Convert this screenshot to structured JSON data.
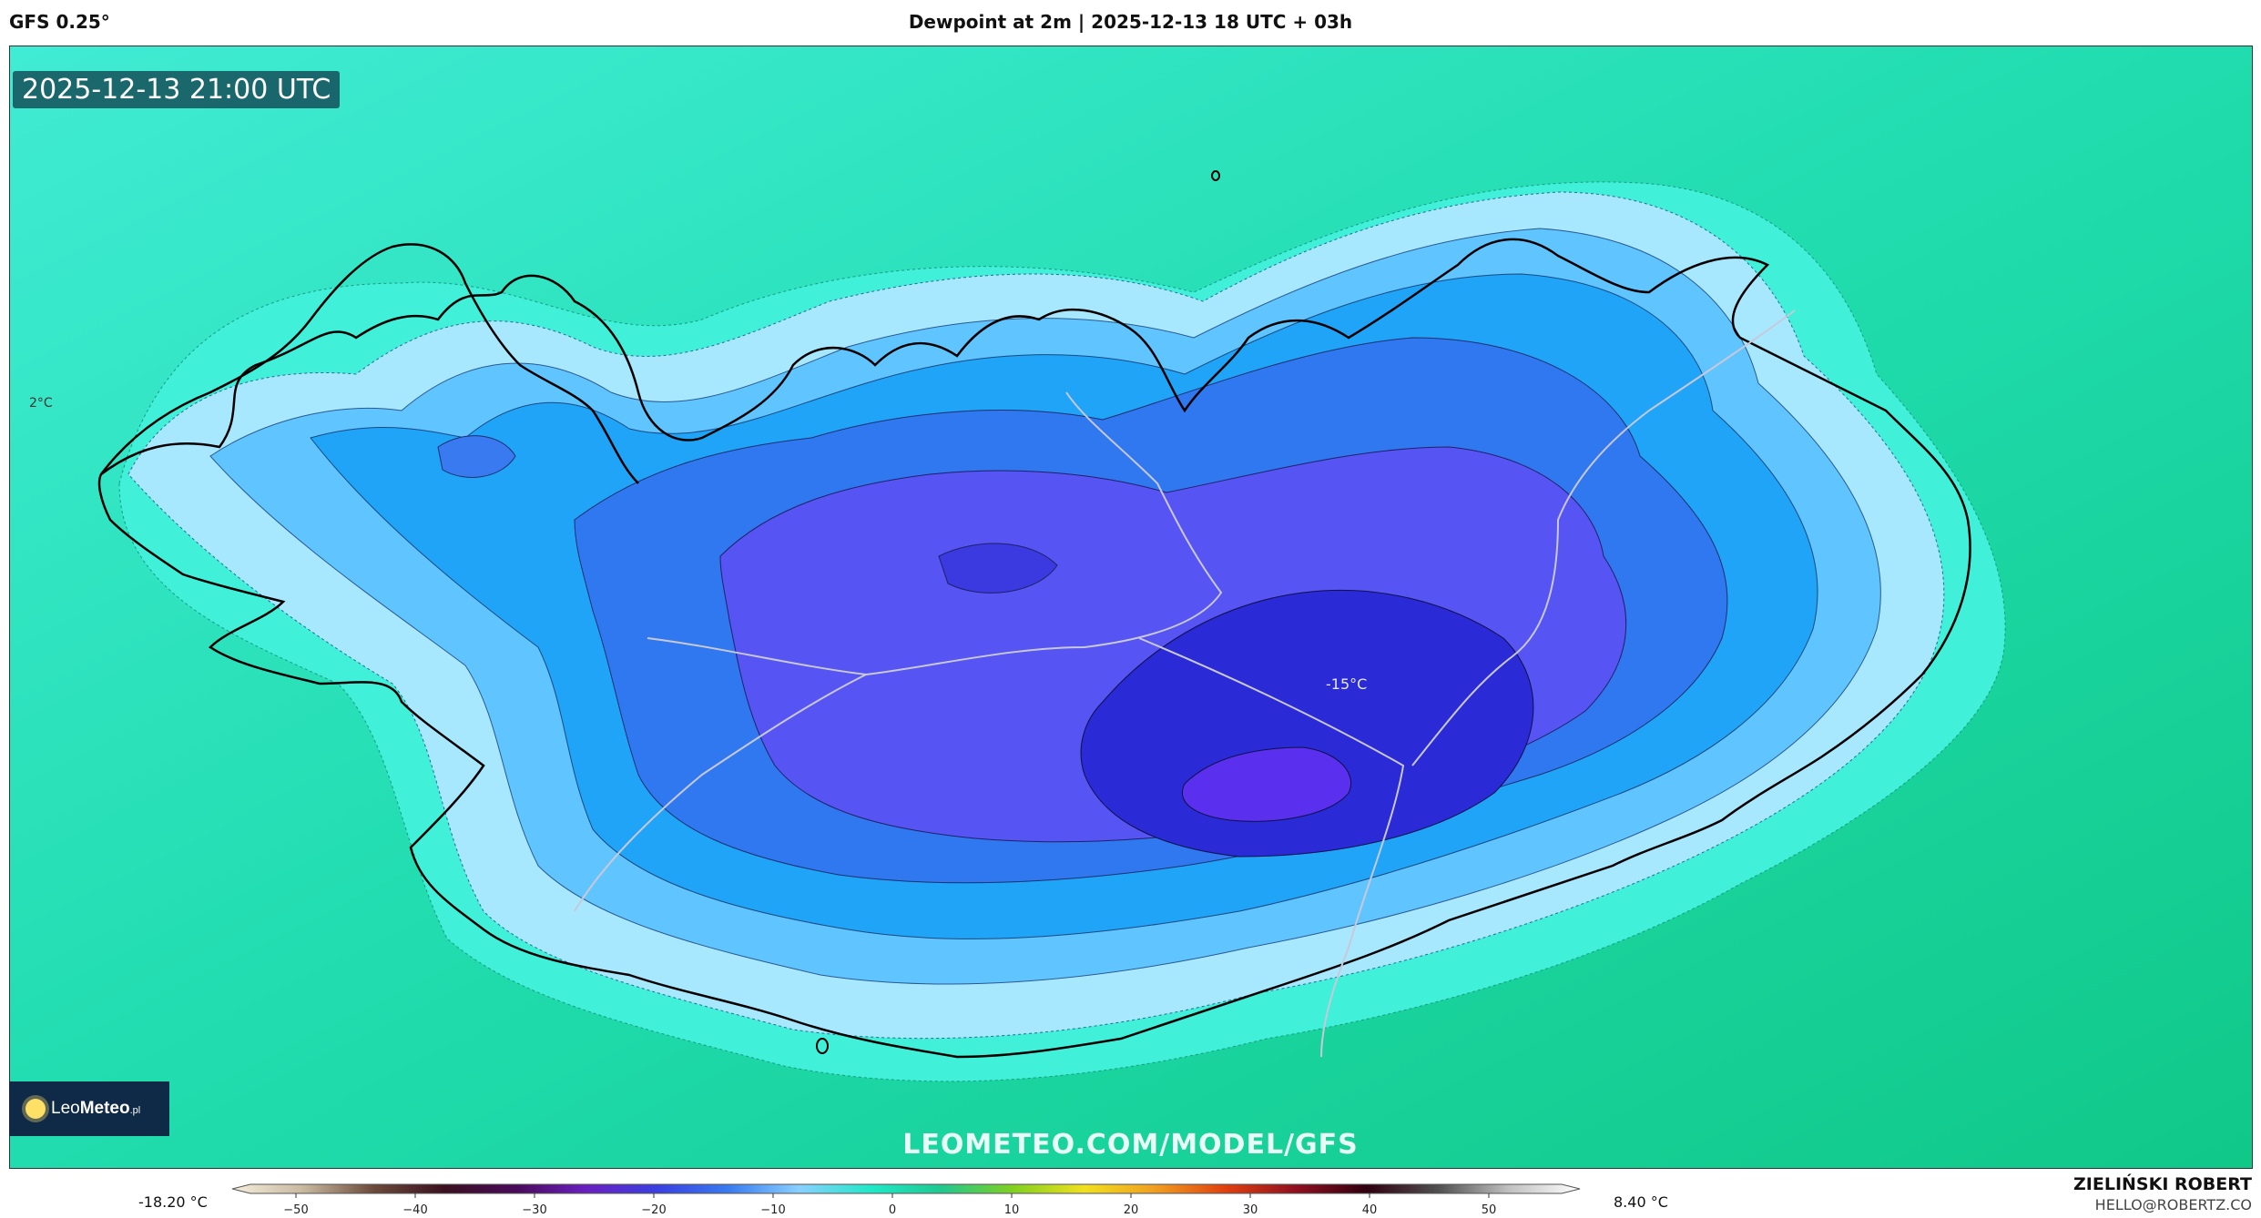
{
  "header": {
    "model": "GFS 0.25°",
    "title": "Dewpoint at 2m | 2025-12-13 18 UTC + 03h"
  },
  "map": {
    "valid_time": "2025-12-13 21:00 UTC",
    "labels": {
      "west_edge": "2°C",
      "center": "-15°C"
    },
    "watermark": "LEOMETEO.COM/MODEL/GFS",
    "logo": {
      "prefix": "Leo",
      "brand": "Meteo",
      "suffix": ".pl"
    }
  },
  "colorbar": {
    "min_label": "-18.20 °C",
    "max_label": "8.40 °C",
    "ticks": [
      "−50",
      "−40",
      "−30",
      "−20",
      "−10",
      "0",
      "10",
      "20",
      "30",
      "40",
      "50"
    ],
    "stops": [
      "#f5eedc",
      "#c8b8a0",
      "#6b4a3a",
      "#3a1020",
      "#4a0a5a",
      "#6a20c0",
      "#3a40e0",
      "#3a7af0",
      "#8ad0ff",
      "#20e8c8",
      "#20c890",
      "#80d020",
      "#f0e020",
      "#f0a020",
      "#e04010",
      "#901020",
      "#300010",
      "#505050",
      "#c0c0c0",
      "#ffffff"
    ]
  },
  "footer": {
    "author": "ZIELIŃSKI ROBERT",
    "email": "HELLO@ROBERTZ.CO"
  },
  "colors": {
    "ocean": "#20d8a8",
    "ocean_light": "#40f0d0",
    "coast_pale": "#a8e8ff",
    "cold_1": "#60c0ff",
    "cold_2": "#20a0f8",
    "cold_3": "#3070f0",
    "cold_4": "#5050f0",
    "cold_5": "#3030d8",
    "cold_6": "#6030f0"
  }
}
